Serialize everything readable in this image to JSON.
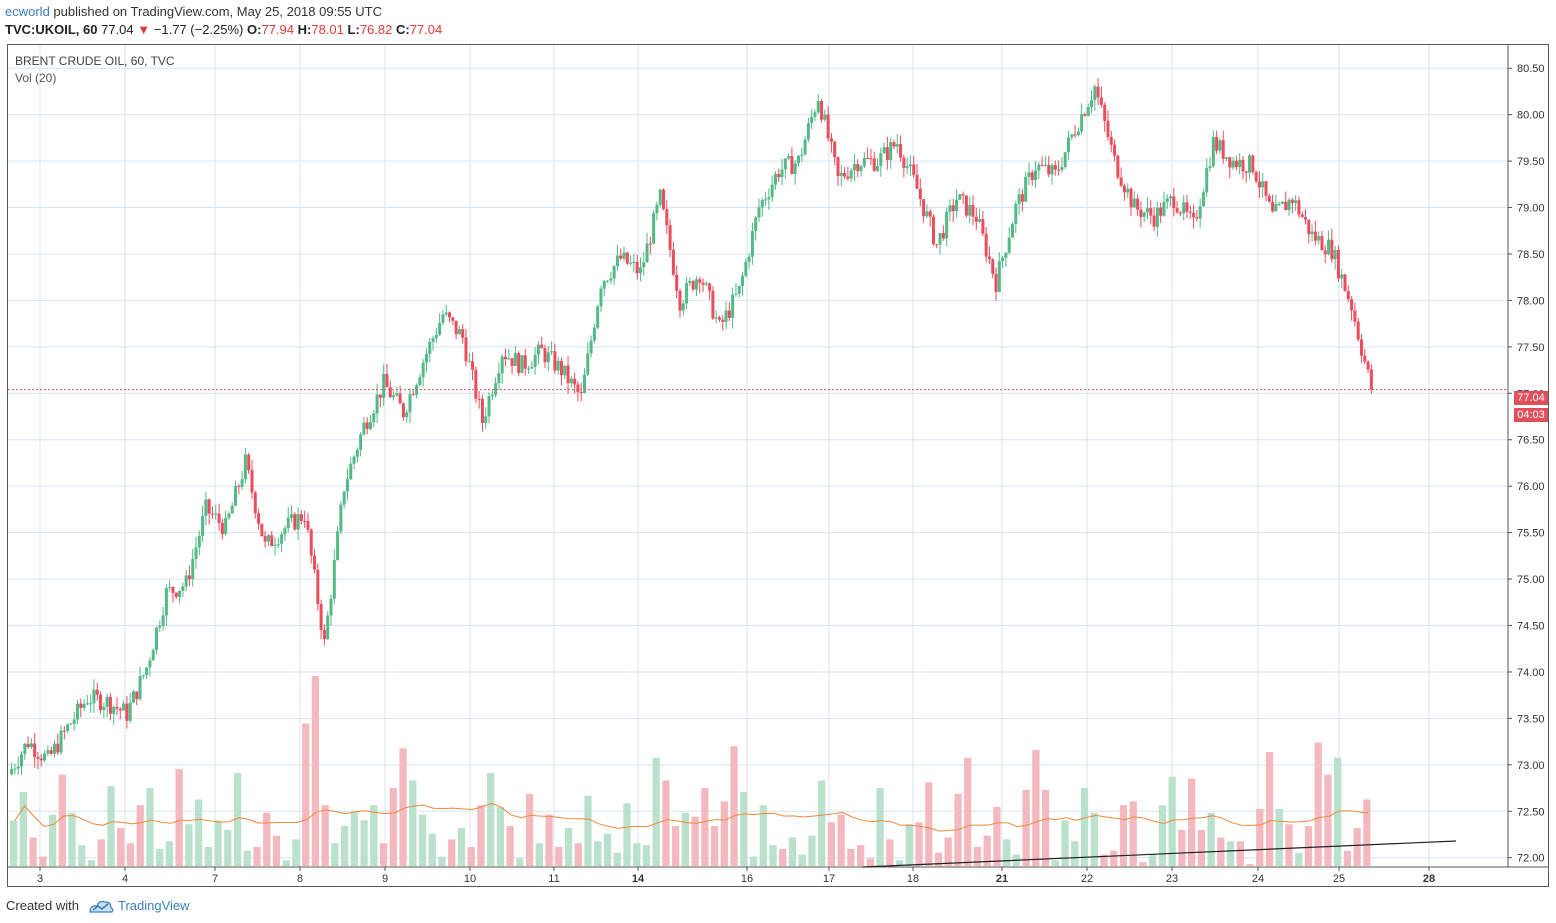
{
  "header": {
    "user": "ecworld",
    "published_text": "published on TradingView.com, May 25, 2018 09:55 UTC",
    "symbol": "TVC:UKOIL, 60",
    "last": "77.04",
    "change": "−1.77 (−2.25%)",
    "o_label": "O:",
    "o_value": "77.94",
    "h_label": "H:",
    "h_value": "78.01",
    "l_label": "L:",
    "l_value": "76.82",
    "c_label": "C:",
    "c_value": "77.04"
  },
  "legend": {
    "title": "BRENT CRUDE OIL, 60, TVC",
    "volume": "Vol (20)"
  },
  "price_tags": {
    "last_price": "77.04",
    "countdown": "04:03"
  },
  "footer": {
    "created_with": "Created with",
    "brand": "TradingView"
  },
  "colors": {
    "up": "#53b987",
    "down": "#eb4d5c",
    "vol_up": "#b9e1cc",
    "vol_down": "#f4b9bf",
    "vol_ma": "#f0883c",
    "grid": "#d8e3ef",
    "last_price_line": "#e0505b"
  },
  "chart_data": {
    "type": "candlestick",
    "title": "BRENT CRUDE OIL, 60, TVC",
    "y_ticks": [
      "72.00",
      "72.50",
      "73.00",
      "73.50",
      "74.00",
      "74.50",
      "75.00",
      "75.50",
      "76.00",
      "76.50",
      "77.00",
      "77.50",
      "78.00",
      "78.50",
      "79.00",
      "79.50",
      "80.00",
      "80.50"
    ],
    "ylim": [
      71.9,
      80.75
    ],
    "x_ticks": [
      "3",
      "4",
      "7",
      "8",
      "9",
      "10",
      "11",
      "14",
      "16",
      "17",
      "18",
      "21",
      "22",
      "23",
      "24",
      "25",
      "28"
    ],
    "x_ticks_bold": [
      "14",
      "21",
      "28"
    ],
    "last_price": 77.04,
    "trendline": {
      "from": [
        17.4,
        71.9
      ],
      "to": [
        28.9,
        72.18
      ]
    },
    "price_path": [
      [
        "3",
        72.9
      ],
      [
        "3",
        73.25
      ],
      [
        "3",
        73.05
      ],
      [
        "3",
        73.4
      ],
      [
        "4",
        73.72
      ],
      [
        "4",
        73.68
      ],
      [
        "4",
        73.55
      ],
      [
        "4",
        74.05
      ],
      [
        "7",
        74.85
      ],
      [
        "7",
        74.95
      ],
      [
        "7",
        75.75
      ],
      [
        "7",
        75.55
      ],
      [
        "8",
        76.25
      ],
      [
        "8",
        75.35
      ],
      [
        "8",
        75.55
      ],
      [
        "8",
        75.7
      ],
      [
        "8",
        74.3
      ],
      [
        "9",
        76.0
      ],
      [
        "9",
        76.65
      ],
      [
        "9",
        77.1
      ],
      [
        "10",
        76.8
      ],
      [
        "10",
        77.35
      ],
      [
        "10",
        77.85
      ],
      [
        "10",
        77.6
      ],
      [
        "11",
        76.7
      ],
      [
        "11",
        77.45
      ],
      [
        "11",
        77.3
      ],
      [
        "11",
        77.45
      ],
      [
        "11",
        77.25
      ],
      [
        "11",
        76.95
      ],
      [
        "14",
        78.2
      ],
      [
        "14",
        78.45
      ],
      [
        "14",
        78.3
      ],
      [
        "14",
        79.1
      ],
      [
        "16",
        78.0
      ],
      [
        "16",
        78.3
      ],
      [
        "16",
        77.7
      ],
      [
        "16",
        78.1
      ],
      [
        "17",
        79.0
      ],
      [
        "17",
        79.4
      ],
      [
        "17",
        79.5
      ],
      [
        "17",
        80.2
      ],
      [
        "18",
        79.3
      ],
      [
        "18",
        79.5
      ],
      [
        "18",
        79.5
      ],
      [
        "18",
        79.7
      ],
      [
        "18",
        79.2
      ],
      [
        "18",
        78.6
      ],
      [
        "21",
        79.1
      ],
      [
        "21",
        78.9
      ],
      [
        "21",
        78.2
      ],
      [
        "21",
        79.0
      ],
      [
        "22",
        79.45
      ],
      [
        "22",
        79.35
      ],
      [
        "22",
        79.85
      ],
      [
        "22",
        80.3
      ],
      [
        "23",
        79.5
      ],
      [
        "23",
        79.0
      ],
      [
        "23",
        78.9
      ],
      [
        "23",
        79.1
      ],
      [
        "23",
        78.8
      ],
      [
        "24",
        79.7
      ],
      [
        "24",
        79.5
      ],
      [
        "24",
        79.45
      ],
      [
        "24",
        78.9
      ],
      [
        "25",
        79.1
      ],
      [
        "25",
        78.7
      ],
      [
        "25",
        78.55
      ],
      [
        "25",
        77.94
      ],
      [
        "25",
        77.04
      ]
    ],
    "volume_levels_to_max": [
      0.24,
      0.39,
      0.15,
      0.05,
      0.27,
      0.48,
      0.28,
      0.11,
      0.03,
      0.14,
      0.42,
      0.2,
      0.12,
      0.32,
      0.41,
      0.09,
      0.13,
      0.51,
      0.22,
      0.35,
      0.1,
      0.24,
      0.19,
      0.49,
      0.08,
      0.1,
      0.28,
      0.16,
      0.03,
      0.14,
      0.75,
      1.0,
      0.32,
      0.12,
      0.21,
      0.29,
      0.24,
      0.32,
      0.12,
      0.41,
      0.62,
      0.45,
      0.27,
      0.17,
      0.05,
      0.14,
      0.2,
      0.1,
      0.32,
      0.49,
      0.31,
      0.21,
      0.04,
      0.38,
      0.12,
      0.27,
      0.1,
      0.2,
      0.12,
      0.37,
      0.13,
      0.17,
      0.07,
      0.33,
      0.12,
      0.11,
      0.57,
      0.45,
      0.21,
      0.28,
      0.26,
      0.41,
      0.21,
      0.34,
      0.63,
      0.39,
      0.05,
      0.32,
      0.11,
      0.09,
      0.15,
      0.06,
      0.16,
      0.45,
      0.23,
      0.27,
      0.09,
      0.11,
      0.04,
      0.41,
      0.14,
      0.03,
      0.22,
      0.23,
      0.44,
      0.07,
      0.15,
      0.38,
      0.57,
      0.1,
      0.16,
      0.31,
      0.14,
      0.06,
      0.4,
      0.61,
      0.4,
      0.03,
      0.24,
      0.13,
      0.41,
      0.28,
      0.06,
      0.08,
      0.32,
      0.34,
      0.02,
      0.06,
      0.32,
      0.47,
      0.19,
      0.46,
      0.19,
      0.28,
      0.15,
      0.13,
      0.13,
      0.01,
      0.3,
      0.6,
      0.3,
      0.22,
      0.07,
      0.21,
      0.65,
      0.48,
      0.57,
      0.08,
      0.2,
      0.35
    ]
  }
}
